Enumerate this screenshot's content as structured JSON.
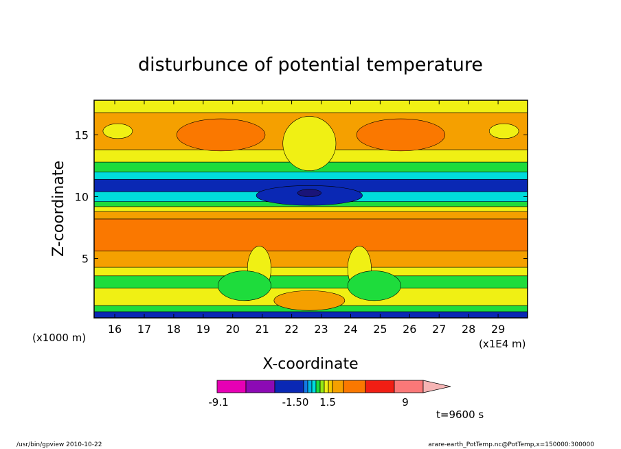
{
  "chart_data": {
    "type": "heatmap",
    "title": "disturbunce of potential temperature",
    "xlabel": "X-coordinate",
    "ylabel": "Z-coordinate",
    "x_unit_label": "(x1E4 m)",
    "y_unit_label": "(x1000 m)",
    "xlim": [
      15.3,
      30.0
    ],
    "ylim": [
      0.2,
      17.8
    ],
    "x_ticks": [
      16,
      17,
      18,
      19,
      20,
      21,
      22,
      23,
      24,
      25,
      26,
      27,
      28,
      29
    ],
    "y_ticks": [
      5,
      10,
      15
    ],
    "time_label": "t=9600 s",
    "colorbar": {
      "tick_labels": [
        "-9.1",
        "-1.50",
        "1.5",
        "9"
      ],
      "colors": [
        "#e600b4",
        "#8c0ab4",
        "#0a28b4",
        "#1478e6",
        "#00b4e6",
        "#00dcdc",
        "#1edc3c",
        "#96e614",
        "#f0f014",
        "#f5c800",
        "#f5a000",
        "#fa7800",
        "#f01e14",
        "#fa7878",
        "#f5b4b4"
      ]
    },
    "bands": [
      {
        "z": [
          0.2,
          0.7
        ],
        "color": "#0a28b4"
      },
      {
        "z": [
          0.7,
          1.2
        ],
        "color": "#1edc3c"
      },
      {
        "z": [
          1.2,
          2.6
        ],
        "color": "#f0f014"
      },
      {
        "z": [
          2.6,
          3.6
        ],
        "color": "#1edc3c"
      },
      {
        "z": [
          3.6,
          4.3
        ],
        "color": "#f0f014"
      },
      {
        "z": [
          4.3,
          5.6
        ],
        "color": "#f5a000"
      },
      {
        "z": [
          5.6,
          8.2
        ],
        "color": "#fa7800"
      },
      {
        "z": [
          8.2,
          8.8
        ],
        "color": "#f5a000"
      },
      {
        "z": [
          8.8,
          9.2
        ],
        "color": "#f0f014"
      },
      {
        "z": [
          9.2,
          9.6
        ],
        "color": "#1edc3c"
      },
      {
        "z": [
          9.6,
          10.4
        ],
        "color": "#00dcdc"
      },
      {
        "z": [
          10.4,
          11.4
        ],
        "color": "#0a28b4"
      },
      {
        "z": [
          11.4,
          12.0
        ],
        "color": "#00dcdc"
      },
      {
        "z": [
          12.0,
          12.8
        ],
        "color": "#1edc3c"
      },
      {
        "z": [
          12.8,
          13.8
        ],
        "color": "#f0f014"
      },
      {
        "z": [
          13.8,
          16.8
        ],
        "color": "#f5a000"
      },
      {
        "z": [
          16.8,
          17.8
        ],
        "color": "#f0f014"
      }
    ],
    "blobs": [
      {
        "x": 19.6,
        "z": 15.0,
        "rx": 1.5,
        "rz": 1.3,
        "color": "#fa7800"
      },
      {
        "x": 25.7,
        "z": 15.0,
        "rx": 1.5,
        "rz": 1.3,
        "color": "#fa7800"
      },
      {
        "x": 16.1,
        "z": 15.3,
        "rx": 0.5,
        "rz": 0.6,
        "color": "#f0f014"
      },
      {
        "x": 29.2,
        "z": 15.3,
        "rx": 0.5,
        "rz": 0.6,
        "color": "#f0f014"
      },
      {
        "x": 22.6,
        "z": 14.3,
        "rx": 0.9,
        "rz": 2.2,
        "color": "#f0f014"
      },
      {
        "x": 22.6,
        "z": 10.1,
        "rx": 1.8,
        "rz": 0.8,
        "color": "#0a28b4"
      },
      {
        "x": 22.6,
        "z": 10.3,
        "rx": 0.4,
        "rz": 0.3,
        "color": "#1a1478"
      },
      {
        "x": 20.9,
        "z": 4.2,
        "rx": 0.4,
        "rz": 1.8,
        "color": "#f0f014"
      },
      {
        "x": 24.3,
        "z": 4.2,
        "rx": 0.4,
        "rz": 1.8,
        "color": "#f0f014"
      },
      {
        "x": 20.4,
        "z": 2.8,
        "rx": 0.9,
        "rz": 1.2,
        "color": "#1edc3c"
      },
      {
        "x": 24.8,
        "z": 2.8,
        "rx": 0.9,
        "rz": 1.2,
        "color": "#1edc3c"
      },
      {
        "x": 22.6,
        "z": 1.6,
        "rx": 1.2,
        "rz": 0.8,
        "color": "#f5a000"
      }
    ]
  },
  "footer": {
    "left": "/usr/bin/gpview   2010-10-22",
    "right": "arare-earth_PotTemp.nc@PotTemp,x=150000:300000"
  }
}
